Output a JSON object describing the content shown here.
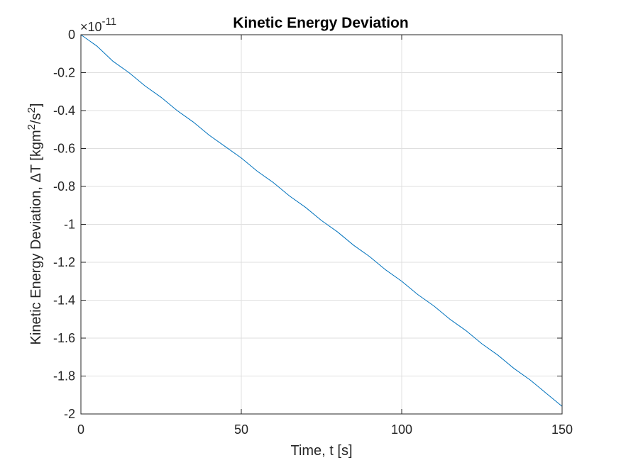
{
  "chart_data": {
    "type": "line",
    "title": "Kinetic Energy Deviation",
    "xlabel": "Time, t [s]",
    "ylabel_parts": [
      "Kinetic Energy Deviation, ",
      "ΔT [kgm",
      "2",
      "/s",
      "2",
      "]"
    ],
    "y_exponent": {
      "prefix": "×10",
      "power": "-11"
    },
    "xlim": [
      0,
      150
    ],
    "ylim": [
      -2,
      0
    ],
    "x_ticks": [
      0,
      50,
      100,
      150
    ],
    "x_tick_labels": [
      "0",
      "50",
      "100",
      "150"
    ],
    "y_ticks": [
      0,
      -0.2,
      -0.4,
      -0.6,
      -0.8,
      -1,
      -1.2,
      -1.4,
      -1.6,
      -1.8,
      -2
    ],
    "y_tick_labels": [
      "0",
      "-0.2",
      "-0.4",
      "-0.6",
      "-0.8",
      "-1",
      "-1.2",
      "-1.4",
      "-1.6",
      "-1.8",
      "-2"
    ],
    "grid": true,
    "series": [
      {
        "color": "#0072BD",
        "x": [
          0,
          5,
          10,
          15,
          20,
          25,
          30,
          35,
          40,
          45,
          50,
          55,
          60,
          65,
          70,
          75,
          80,
          85,
          90,
          95,
          100,
          105,
          110,
          115,
          120,
          125,
          130,
          135,
          140,
          145,
          150
        ],
        "y": [
          0,
          -0.06,
          -0.14,
          -0.2,
          -0.27,
          -0.33,
          -0.4,
          -0.46,
          -0.53,
          -0.59,
          -0.65,
          -0.72,
          -0.78,
          -0.85,
          -0.91,
          -0.98,
          -1.04,
          -1.11,
          -1.17,
          -1.24,
          -1.3,
          -1.37,
          -1.43,
          -1.5,
          -1.56,
          -1.63,
          -1.69,
          -1.76,
          -1.82,
          -1.89,
          -1.96
        ]
      }
    ]
  }
}
